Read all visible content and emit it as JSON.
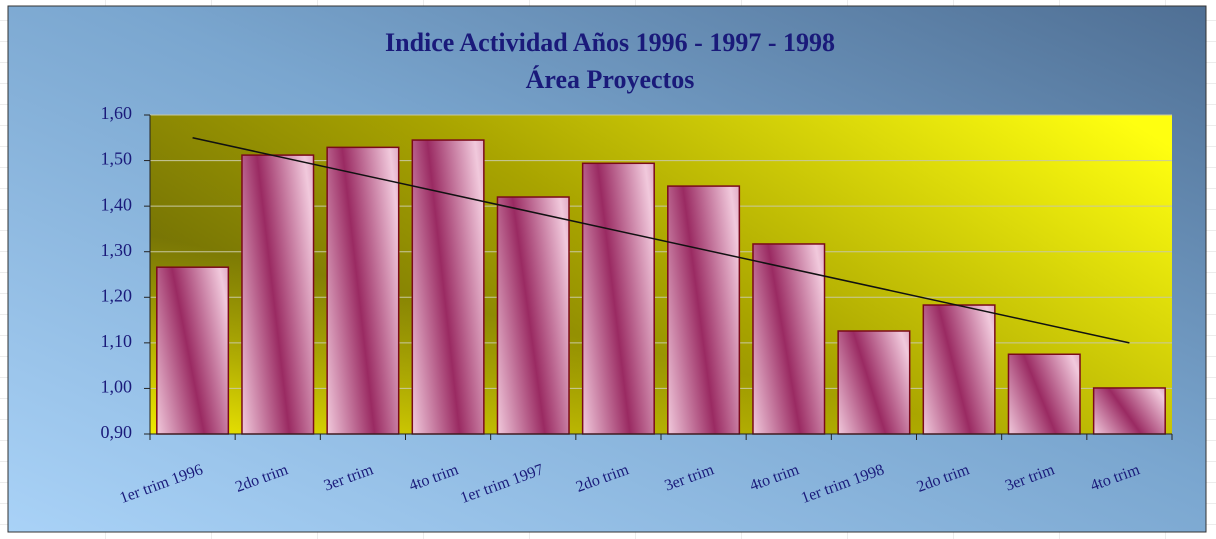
{
  "chart_data": {
    "type": "bar",
    "title": "Indice Actividad Años 1996 - 1997 - 1998",
    "subtitle": "Área Proyectos",
    "categories": [
      "1er trim 1996",
      "2do trim",
      "3er trim",
      "4to trim",
      "1er trim 1997",
      "2do trim",
      "3er trim",
      "4to trim",
      "1er trim 1998",
      "2do trim",
      "3er trim",
      "4to trim"
    ],
    "values": [
      1.266,
      1.512,
      1.529,
      1.545,
      1.42,
      1.494,
      1.444,
      1.317,
      1.126,
      1.183,
      1.075,
      1.001
    ],
    "trendline": [
      1.55,
      1.1
    ],
    "color": "#9a2a62",
    "ylim": [
      0.9,
      1.6
    ],
    "yticks": [
      {
        "value": 0.9,
        "label": "0,90"
      },
      {
        "value": 1.0,
        "label": "1,00"
      },
      {
        "value": 1.1,
        "label": "1,10"
      },
      {
        "value": 1.2,
        "label": "1,20"
      },
      {
        "value": 1.3,
        "label": "1,30"
      },
      {
        "value": 1.4,
        "label": "1,40"
      },
      {
        "value": 1.5,
        "label": "1,50"
      },
      {
        "value": 1.6,
        "label": "1,60"
      }
    ],
    "grid": true
  }
}
